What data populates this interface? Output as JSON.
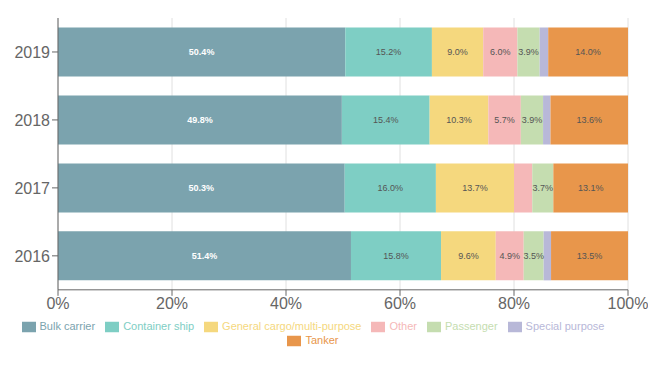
{
  "chart_data": {
    "type": "bar",
    "orientation": "horizontal",
    "stacked": true,
    "categories": [
      "2019",
      "2018",
      "2017",
      "2016"
    ],
    "series": [
      {
        "name": "Bulk carrier",
        "color": "#7ba3ae",
        "values": [
          50.4,
          49.8,
          50.3,
          51.4
        ],
        "value_labels": [
          "50.4%",
          "49.8%",
          "50.3%",
          "51.4%"
        ]
      },
      {
        "name": "Container ship",
        "color": "#7ecec4",
        "values": [
          15.2,
          15.4,
          16.0,
          15.8
        ],
        "value_labels": [
          "15.2%",
          "15.4%",
          "16.0%",
          "15.8%"
        ]
      },
      {
        "name": "General cargo/multi-purpose",
        "color": "#f5d87e",
        "values": [
          9.0,
          10.3,
          13.7,
          9.6
        ],
        "value_labels": [
          "9.0%",
          "10.3%",
          "13.7%",
          "9.6%"
        ]
      },
      {
        "name": "Other",
        "color": "#f5b8b8",
        "values": [
          6.0,
          5.7,
          3.2,
          4.9
        ],
        "value_labels": [
          "6.0%",
          "5.7%",
          null,
          "4.9%"
        ]
      },
      {
        "name": "Passenger",
        "color": "#c5ddb0",
        "values": [
          3.9,
          3.9,
          3.7,
          3.5
        ],
        "value_labels": [
          "3.9%",
          "3.9%",
          "3.7%",
          "3.5%"
        ]
      },
      {
        "name": "Special purpose",
        "color": "#b8b8d8",
        "values": [
          1.5,
          1.3,
          0.0,
          1.3
        ],
        "value_labels": [
          null,
          null,
          null,
          null
        ]
      },
      {
        "name": "Tanker",
        "color": "#e8964b",
        "values": [
          14.0,
          13.6,
          13.1,
          13.5
        ],
        "value_labels": [
          "14.0%",
          "13.6%",
          "13.1%",
          "13.5%"
        ]
      }
    ],
    "xlim": [
      0,
      100
    ],
    "xticks": [
      {
        "value": 0,
        "label": "0%"
      },
      {
        "value": 20,
        "label": "20%"
      },
      {
        "value": 40,
        "label": "40%"
      },
      {
        "value": 60,
        "label": "60%"
      },
      {
        "value": 80,
        "label": "80%"
      },
      {
        "value": 100,
        "label": "100%"
      }
    ],
    "grid": true,
    "legend": "bottom",
    "data_labels": true
  }
}
